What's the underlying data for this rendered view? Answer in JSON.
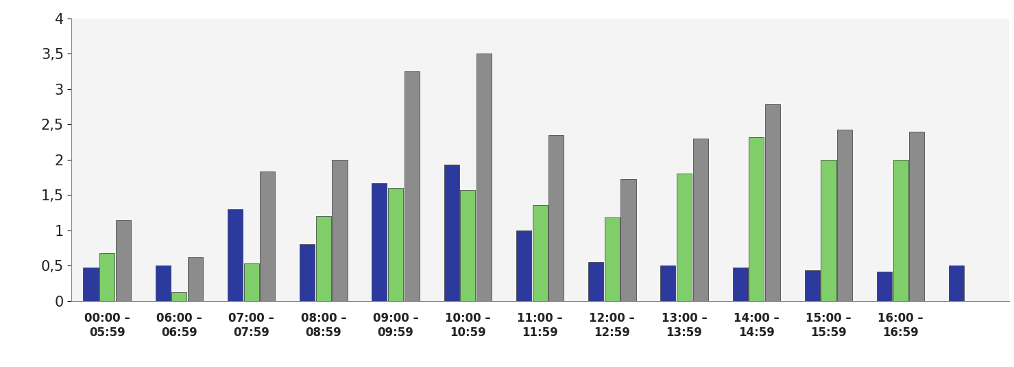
{
  "chart_data": {
    "type": "bar",
    "categories": [
      "00:00 –\n05:59",
      "06:00 –\n06:59",
      "07:00 –\n07:59",
      "08:00 –\n08:59",
      "09:00 –\n09:59",
      "10:00 –\n10:59",
      "11:00 –\n11:59",
      "12:00 –\n12:59",
      "13:00 –\n13:59",
      "14:00 –\n14:59",
      "15:00 –\n15:59",
      "16:00 –\n16:59",
      null
    ],
    "series": [
      {
        "color": "#2b3a9c",
        "values": [
          0.47,
          0.5,
          1.3,
          0.8,
          1.67,
          1.93,
          1.0,
          0.55,
          0.5,
          0.47,
          0.43,
          0.41,
          0.5
        ]
      },
      {
        "color": "#7fce6a",
        "values": [
          0.68,
          0.12,
          0.53,
          1.2,
          1.6,
          1.57,
          1.36,
          1.18,
          1.8,
          2.32,
          2.0,
          2.0,
          null
        ]
      },
      {
        "color": "#8c8c8c",
        "values": [
          1.14,
          0.62,
          1.83,
          2.0,
          3.25,
          3.5,
          2.35,
          1.73,
          2.3,
          2.78,
          2.42,
          2.4,
          null
        ]
      }
    ],
    "ylim": [
      0,
      4
    ],
    "yticks": [
      0,
      {
        "value": 0.5,
        "label": "0,5"
      },
      1,
      {
        "value": 1.5,
        "label": "1,5"
      },
      2,
      {
        "value": 2.5,
        "label": "2,5"
      },
      3,
      {
        "value": 3.5,
        "label": "3,5"
      },
      4
    ],
    "grid": false
  }
}
